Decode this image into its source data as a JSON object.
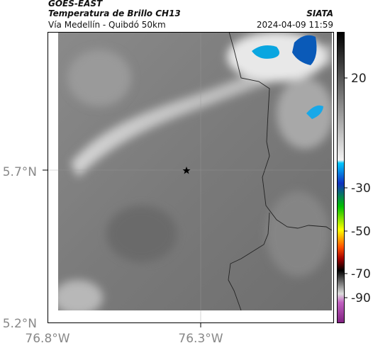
{
  "header": {
    "source": "GOES-EAST",
    "product": "Temperatura de Brillo CH13",
    "region": "Vía Medellín - Quibdó 50km",
    "organization": "SIATA",
    "datetime": "2024-04-09 11:59"
  },
  "map": {
    "lat_ticks": [
      "5.7°N",
      "5.2°N"
    ],
    "lon_ticks": [
      "76.8°W",
      "76.3°W"
    ]
  },
  "colorbar": {
    "ticks": [
      "20",
      "-30",
      "-50",
      "-70",
      "-90"
    ]
  }
}
